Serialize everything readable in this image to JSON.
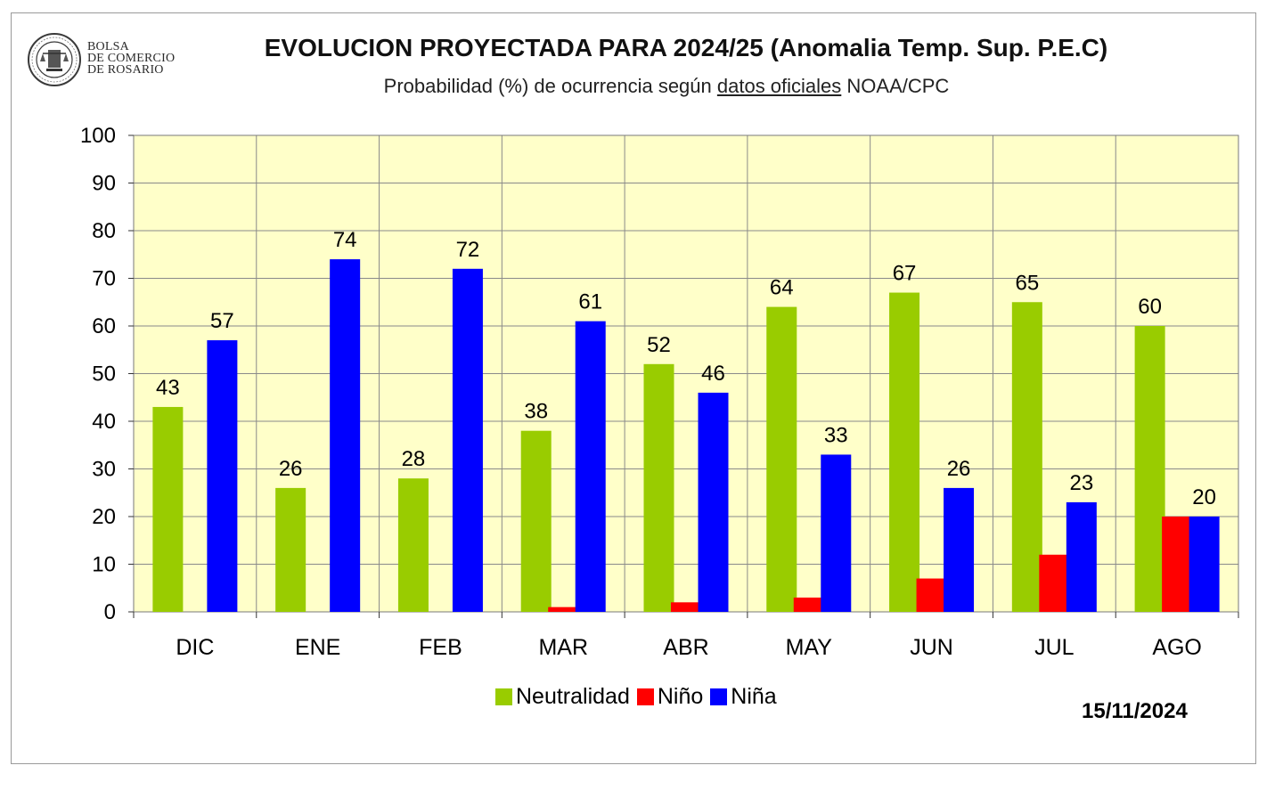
{
  "logo": {
    "line1": "BOLSA",
    "line2": "DE COMERCIO",
    "line3": "DE ROSARIO"
  },
  "header": {
    "title": "EVOLUCION PROYECTADA PARA 2024/25 (Anomalia Temp. Sup. P.E.C)",
    "subtitle_pre": "Probabilidad (%) de ocurrencia según ",
    "subtitle_link": "datos oficiales",
    "subtitle_post": " NOAA/CPC"
  },
  "date": "15/11/2024",
  "colors": {
    "plot_bg": "#ffffc9",
    "neutralidad": "#99cc00",
    "nino": "#ff0000",
    "nina": "#0000ff"
  },
  "chart_data": {
    "type": "bar",
    "title": "EVOLUCION PROYECTADA PARA 2024/25 (Anomalia Temp. Sup. P.E.C)",
    "subtitle": "Probabilidad (%) de ocurrencia según datos oficiales NOAA/CPC",
    "categories": [
      "DIC",
      "ENE",
      "FEB",
      "MAR",
      "ABR",
      "MAY",
      "JUN",
      "JUL",
      "AGO"
    ],
    "series": [
      {
        "name": "Neutralidad",
        "color": "#99cc00",
        "values": [
          43,
          26,
          28,
          38,
          52,
          64,
          67,
          65,
          60
        ],
        "labeled": [
          true,
          true,
          true,
          true,
          true,
          true,
          true,
          true,
          true
        ]
      },
      {
        "name": "Niño",
        "color": "#ff0000",
        "values": [
          0,
          0,
          0,
          1,
          2,
          3,
          7,
          12,
          20
        ],
        "labeled": [
          false,
          false,
          false,
          false,
          false,
          false,
          false,
          false,
          false
        ]
      },
      {
        "name": "Niña",
        "color": "#0000ff",
        "values": [
          57,
          74,
          72,
          61,
          46,
          33,
          26,
          23,
          20
        ],
        "labeled": [
          true,
          true,
          true,
          true,
          true,
          true,
          true,
          true,
          true
        ]
      }
    ],
    "ylim": [
      0,
      100
    ],
    "yticks": [
      0,
      10,
      20,
      30,
      40,
      50,
      60,
      70,
      80,
      90,
      100
    ],
    "grid": true,
    "legend_position": "bottom"
  }
}
